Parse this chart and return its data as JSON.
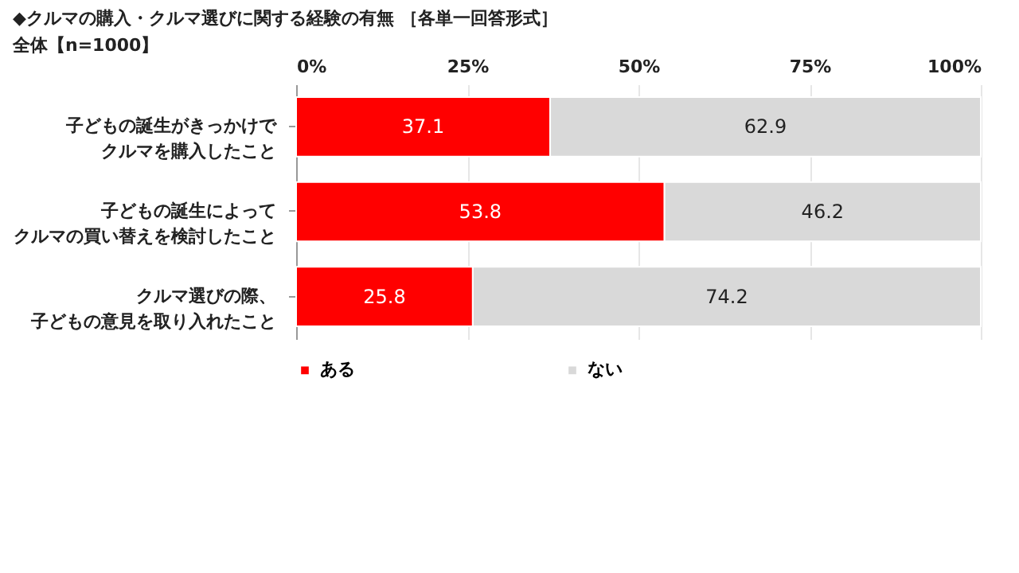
{
  "chart_data": {
    "type": "bar",
    "orientation": "horizontal",
    "stacked": true,
    "title": "◆クルマの購入・クルマ選びに関する経験の有無 ［各単一回答形式］",
    "subtitle": "全体【n=1000】",
    "categories": [
      "子どもの誕生がきっかけでクルマを購入したこと",
      "子どもの誕生によってクルマの買い替えを検討したこと",
      "クルマ選びの際、子どもの意見を取り入れたこと"
    ],
    "series": [
      {
        "name": "ある",
        "color": "#ff0000",
        "values": [
          37.1,
          53.8,
          25.8
        ]
      },
      {
        "name": "ない",
        "color": "#d9d9d9",
        "values": [
          62.9,
          46.2,
          74.2
        ]
      }
    ],
    "xlim": [
      0,
      100
    ],
    "xticks": [
      {
        "value": 0,
        "label": "0%"
      },
      {
        "value": 25,
        "label": "25%"
      },
      {
        "value": 50,
        "label": "50%"
      },
      {
        "value": 75,
        "label": "75%"
      },
      {
        "value": 100,
        "label": "100%"
      }
    ],
    "data_labels": true,
    "grid": "x",
    "legend": "bottom"
  }
}
